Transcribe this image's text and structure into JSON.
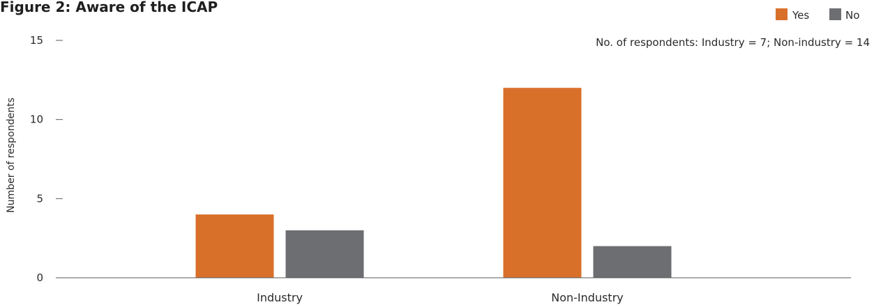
{
  "chart_data": {
    "type": "bar",
    "title": "Figure 2: Aware of the ICAP",
    "note": "No. of respondents: Industry = 7; Non-industry = 14",
    "xlabel": "",
    "ylabel": "Number of respondents",
    "categories": [
      "Industry",
      "Non-Industry"
    ],
    "series": [
      {
        "name": "Yes",
        "color": "#d9702a",
        "values": [
          4,
          12
        ]
      },
      {
        "name": "No",
        "color": "#6d6e71",
        "values": [
          3,
          2
        ]
      }
    ],
    "ylim": [
      0,
      15
    ],
    "yticks": [
      "0",
      "5",
      "10",
      "15"
    ],
    "grid": false,
    "legend": "top-right"
  }
}
